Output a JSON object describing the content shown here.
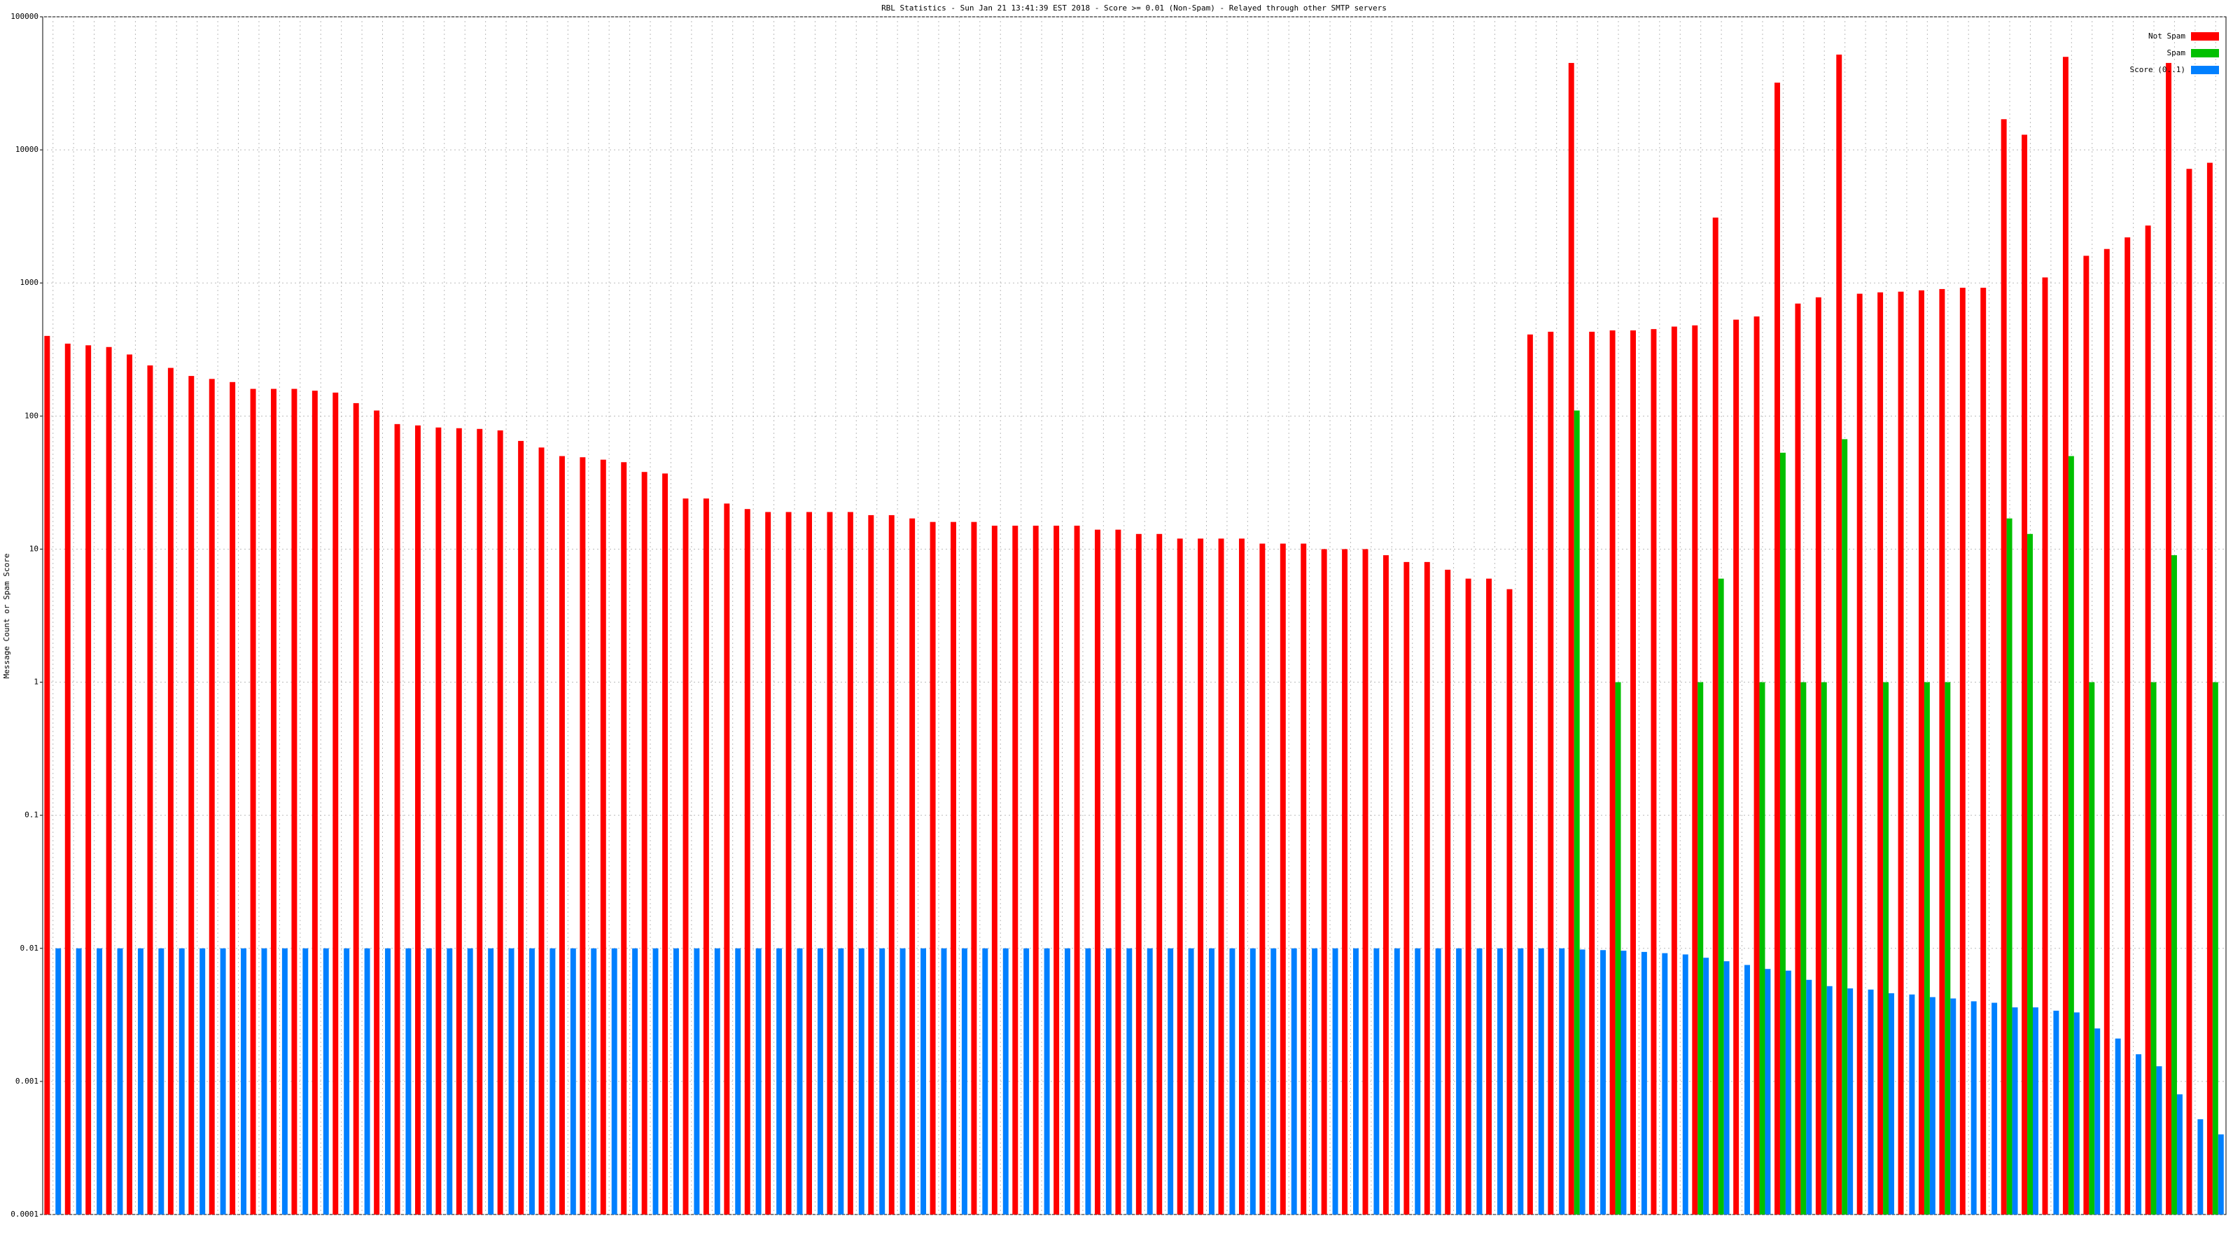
{
  "chart_data": {
    "type": "bar",
    "title": "RBL Statistics - Sun Jan 21 13:41:39 EST 2018 - Score >= 0.01 (Non-Spam) - Relayed through other SMTP servers",
    "y_label": "Message Count or Spam Score",
    "log_scale": true,
    "grid": true,
    "legend": "upper right",
    "ylim": [
      0.0001,
      100000
    ],
    "yticks": [
      0.0001,
      0.001,
      0.01,
      0.1,
      1,
      10,
      100,
      1000,
      10000,
      100000
    ],
    "series": [
      {
        "name": "Not Spam",
        "color": "#ff0000",
        "values": [
          400,
          350,
          340,
          330,
          290,
          240,
          230,
          200,
          190,
          180,
          160,
          160,
          160,
          155,
          150,
          125,
          110,
          87,
          85,
          82,
          81,
          80,
          78,
          65,
          58,
          50,
          49,
          47,
          45,
          38,
          37,
          24,
          24,
          22,
          20,
          19,
          19,
          19,
          19,
          19,
          18,
          18,
          17,
          16,
          16,
          16,
          15,
          15,
          15,
          15,
          15,
          14,
          14,
          13,
          13,
          12,
          12,
          12,
          12,
          11,
          11,
          11,
          10,
          10,
          10,
          9,
          8,
          8,
          7,
          6,
          6,
          5,
          410,
          430,
          45000,
          430,
          440,
          440,
          450,
          470,
          480,
          3100,
          530,
          560,
          32000,
          700,
          780,
          52000,
          830,
          850,
          860,
          880,
          900,
          920,
          920,
          17000,
          13000,
          1100,
          50000,
          1600,
          1800,
          2200,
          2700,
          45000,
          7200,
          8000
        ]
      },
      {
        "name": "Spam",
        "color": "#00c000",
        "values": [
          0,
          0,
          0,
          0,
          0,
          0,
          0,
          0,
          0,
          0,
          0,
          0,
          0,
          0,
          0,
          0,
          0,
          0,
          0,
          0,
          0,
          0,
          0,
          0,
          0,
          0,
          0,
          0,
          0,
          0,
          0,
          0,
          0,
          0,
          0,
          0,
          0,
          0,
          0,
          0,
          0,
          0,
          0,
          0,
          0,
          0,
          0,
          0,
          0,
          0,
          0,
          0,
          0,
          0,
          0,
          0,
          0,
          0,
          0,
          0,
          0,
          0,
          0,
          0,
          0,
          0,
          0,
          0,
          0,
          0,
          0,
          0,
          0,
          0,
          110,
          0,
          1,
          0,
          0,
          0,
          1,
          6,
          0,
          1,
          53,
          1,
          1,
          67,
          0,
          1,
          0,
          1,
          1,
          0,
          0,
          17,
          13,
          0,
          50,
          1,
          0,
          0,
          1,
          9,
          0,
          1
        ]
      },
      {
        "name": "Score (0..1)",
        "color": "#0080ff",
        "values": [
          0.01,
          0.01,
          0.01,
          0.01,
          0.01,
          0.01,
          0.01,
          0.01,
          0.01,
          0.01,
          0.01,
          0.01,
          0.01,
          0.01,
          0.01,
          0.01,
          0.01,
          0.01,
          0.01,
          0.01,
          0.01,
          0.01,
          0.01,
          0.01,
          0.01,
          0.01,
          0.01,
          0.01,
          0.01,
          0.01,
          0.01,
          0.01,
          0.01,
          0.01,
          0.01,
          0.01,
          0.01,
          0.01,
          0.01,
          0.01,
          0.01,
          0.01,
          0.01,
          0.01,
          0.01,
          0.01,
          0.01,
          0.01,
          0.01,
          0.01,
          0.01,
          0.01,
          0.01,
          0.01,
          0.01,
          0.01,
          0.01,
          0.01,
          0.01,
          0.01,
          0.01,
          0.01,
          0.01,
          0.01,
          0.01,
          0.01,
          0.01,
          0.01,
          0.01,
          0.01,
          0.01,
          0.01,
          0.01,
          0.01,
          0.0098,
          0.0097,
          0.0096,
          0.0094,
          0.0092,
          0.009,
          0.0085,
          0.008,
          0.0075,
          0.007,
          0.0068,
          0.0058,
          0.0052,
          0.005,
          0.0049,
          0.0046,
          0.0045,
          0.0043,
          0.0042,
          0.004,
          0.0039,
          0.0036,
          0.0036,
          0.0034,
          0.0033,
          0.0025,
          0.0021,
          0.0016,
          0.0013,
          0.0008,
          0.00052,
          0.0004
        ]
      }
    ]
  }
}
